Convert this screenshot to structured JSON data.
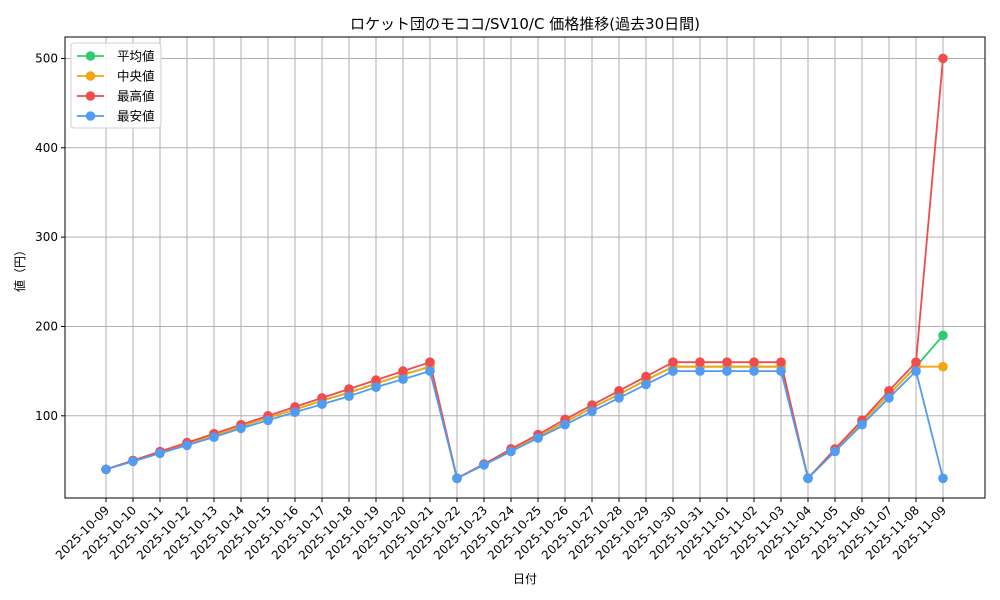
{
  "chart_data": {
    "type": "line",
    "title": "ロケット団のモココ/SV10/C 価格推移(過去30日間)",
    "xlabel": "日付",
    "ylabel": "値（円）",
    "ylim": [
      8,
      524
    ],
    "yticks": [
      100,
      200,
      300,
      400,
      500
    ],
    "grid": true,
    "legend_position": "upper left",
    "x": [
      "2025-10-09",
      "2025-10-10",
      "2025-10-11",
      "2025-10-12",
      "2025-10-13",
      "2025-10-14",
      "2025-10-15",
      "2025-10-16",
      "2025-10-17",
      "2025-10-18",
      "2025-10-19",
      "2025-10-20",
      "2025-10-21",
      "2025-10-22",
      "2025-10-23",
      "2025-10-24",
      "2025-10-25",
      "2025-10-26",
      "2025-10-27",
      "2025-10-28",
      "2025-10-29",
      "2025-10-30",
      "2025-10-31",
      "2025-11-01",
      "2025-11-02",
      "2025-11-03",
      "2025-11-04",
      "2025-11-05",
      "2025-11-06",
      "2025-11-07",
      "2025-11-08",
      "2025-11-09"
    ],
    "series": [
      {
        "name": "平均値",
        "color": "#2ecc71",
        "values": [
          40,
          50,
          59,
          69,
          78,
          88,
          98,
          107,
          117,
          126,
          136,
          146,
          155,
          30,
          46,
          62,
          77,
          93,
          109,
          124,
          140,
          155,
          155,
          155,
          155,
          155,
          30,
          62,
          93,
          124,
          155,
          190
        ]
      },
      {
        "name": "中央値",
        "color": "#f5a511",
        "values": [
          40,
          50,
          59,
          69,
          78,
          88,
          98,
          107,
          117,
          126,
          136,
          146,
          155,
          30,
          46,
          62,
          77,
          93,
          109,
          124,
          140,
          155,
          155,
          155,
          155,
          155,
          30,
          62,
          93,
          124,
          155,
          155
        ]
      },
      {
        "name": "最高値",
        "color": "#f04c4c",
        "values": [
          40,
          50,
          60,
          70,
          80,
          90,
          100,
          110,
          120,
          130,
          140,
          150,
          160,
          30,
          46,
          63,
          79,
          96,
          112,
          128,
          144,
          160,
          160,
          160,
          160,
          160,
          30,
          63,
          95,
          128,
          160,
          500
        ]
      },
      {
        "name": "最安値",
        "color": "#4f9cf2",
        "values": [
          40,
          49,
          58,
          67,
          76,
          86,
          95,
          104,
          113,
          122,
          132,
          141,
          150,
          30,
          45,
          60,
          75,
          90,
          105,
          120,
          135,
          150,
          150,
          150,
          150,
          150,
          30,
          60,
          90,
          120,
          150,
          30
        ]
      }
    ]
  }
}
